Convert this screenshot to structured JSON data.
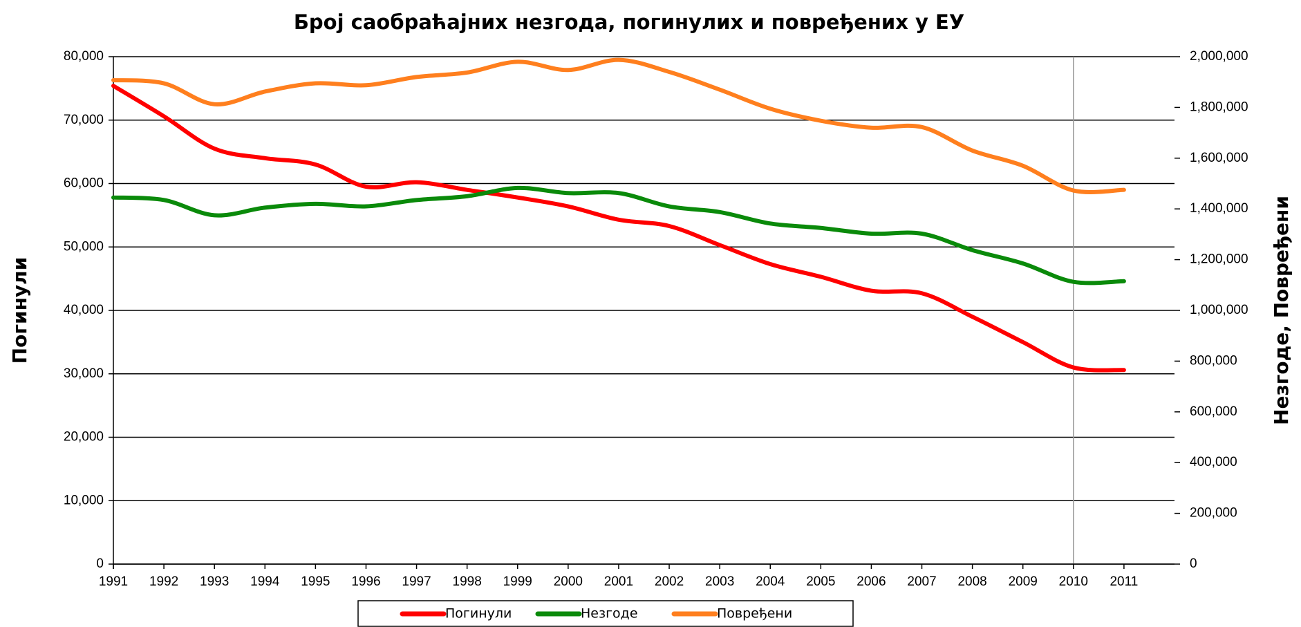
{
  "chart_data": {
    "type": "line",
    "title": "Број саобраћајних незгода, погинулих и повређених у ЕУ",
    "ylabel": "Погинули",
    "y2label": "Незгоде, Повређени",
    "x": [
      1991,
      1992,
      1993,
      1994,
      1995,
      1996,
      1997,
      1998,
      1999,
      2000,
      2001,
      2002,
      2003,
      2004,
      2005,
      2006,
      2007,
      2008,
      2009,
      2010,
      2011
    ],
    "xlim": [
      1991,
      2012
    ],
    "xticks": [
      1991,
      1992,
      1993,
      1994,
      1995,
      1996,
      1997,
      1998,
      1999,
      2000,
      2001,
      2002,
      2003,
      2004,
      2005,
      2006,
      2007,
      2008,
      2009,
      2010,
      2011
    ],
    "vline_x": 2010,
    "ylim": [
      0,
      80000
    ],
    "yticks": [
      0,
      {
        "value": 10000,
        "label": "10,000"
      },
      {
        "value": 20000,
        "label": "20,000"
      },
      {
        "value": 30000,
        "label": "30,000"
      },
      {
        "value": 40000,
        "label": "40,000"
      },
      {
        "value": 50000,
        "label": "50,000"
      },
      {
        "value": 60000,
        "label": "60,000"
      },
      {
        "value": 70000,
        "label": "70,000"
      },
      {
        "value": 80000,
        "label": "80,000"
      }
    ],
    "y2lim": [
      0,
      2000000
    ],
    "y2ticks": [
      0,
      {
        "value": 200000,
        "label": "200,000"
      },
      {
        "value": 400000,
        "label": "400,000"
      },
      {
        "value": 600000,
        "label": "600,000"
      },
      {
        "value": 800000,
        "label": "800,000"
      },
      {
        "value": 1000000,
        "label": "1,000,000"
      },
      {
        "value": 1200000,
        "label": "1,200,000"
      },
      {
        "value": 1400000,
        "label": "1,400,000"
      },
      {
        "value": 1600000,
        "label": "1,600,000"
      },
      {
        "value": 1800000,
        "label": "1,800,000"
      },
      {
        "value": 2000000,
        "label": "2,000,000"
      }
    ],
    "grid": true,
    "smooth": true,
    "series": [
      {
        "name": "Погинули",
        "color": "#ff0000",
        "values": [
          75400,
          70600,
          65500,
          64000,
          63000,
          59500,
          60200,
          59000,
          57800,
          56400,
          54300,
          53300,
          50300,
          47300,
          45300,
          43100,
          42700,
          39000,
          35000,
          31000,
          30600
        ]
      },
      {
        "name": "Незгоде",
        "color": "#0a8a0a",
        "axis": "y2",
        "values": [
          1445000,
          1435000,
          1375000,
          1405000,
          1420000,
          1410000,
          1435000,
          1450000,
          1482500,
          1462500,
          1462500,
          1410000,
          1387500,
          1342500,
          1325000,
          1302500,
          1302500,
          1237500,
          1185000,
          1112500,
          1115000
        ]
      },
      {
        "name": "Повређени",
        "color": "#ff7f1e",
        "axis": "y2",
        "values": [
          1907500,
          1895000,
          1812500,
          1862500,
          1895000,
          1887500,
          1920000,
          1937500,
          1980000,
          1947500,
          1987500,
          1940000,
          1870000,
          1795000,
          1747500,
          1720000,
          1722500,
          1630000,
          1570000,
          1472500,
          1475000
        ]
      }
    ]
  }
}
